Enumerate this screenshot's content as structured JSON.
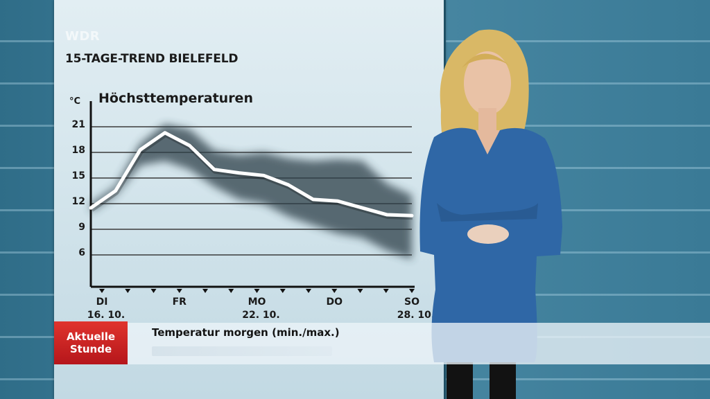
{
  "broadcaster": "WDR",
  "title": "15-TAGE-TREND BIELEFELD",
  "lower_third": {
    "logo_line1": "Aktuelle",
    "logo_line2": "Stunde",
    "text": "Temperatur morgen (min./max.)"
  },
  "colors": {
    "line": "#ffffff",
    "shadow_band": "#2f3f49",
    "gridline": "#3a3a3a",
    "logo_red": "#c8201f"
  },
  "chart_data": {
    "type": "line",
    "title": "Höchsttemperaturen",
    "unit": "°C",
    "ylim": [
      3,
      21
    ],
    "yticks": [
      6,
      9,
      12,
      15,
      18,
      21
    ],
    "day_labels": [
      {
        "day": "DI",
        "date": "16. 10.",
        "index": 0
      },
      {
        "day": "FR",
        "date": "",
        "index": 3
      },
      {
        "day": "MO",
        "date": "22. 10.",
        "index": 6
      },
      {
        "day": "DO",
        "date": "",
        "index": 9
      },
      {
        "day": "SO",
        "date": "28. 10.",
        "index": 12
      }
    ],
    "days": 13,
    "series": [
      {
        "values": [
          11.5,
          13.5,
          18.3,
          20.3,
          18.8,
          16.0,
          15.6,
          15.3,
          14.2,
          12.5,
          12.3,
          11.5,
          10.7,
          10.6
        ]
      }
    ],
    "band_upper": [
      12.0,
      14.0,
      19.0,
      21.3,
      20.7,
      18.2,
      17.7,
      18.0,
      17.3,
      17.0,
      17.2,
      17.0,
      14.3,
      13.0
    ],
    "band_lower": [
      11.0,
      13.0,
      16.5,
      17.0,
      16.0,
      14.0,
      12.5,
      12.0,
      10.5,
      9.5,
      8.5,
      8.0,
      6.5,
      5.5
    ]
  }
}
